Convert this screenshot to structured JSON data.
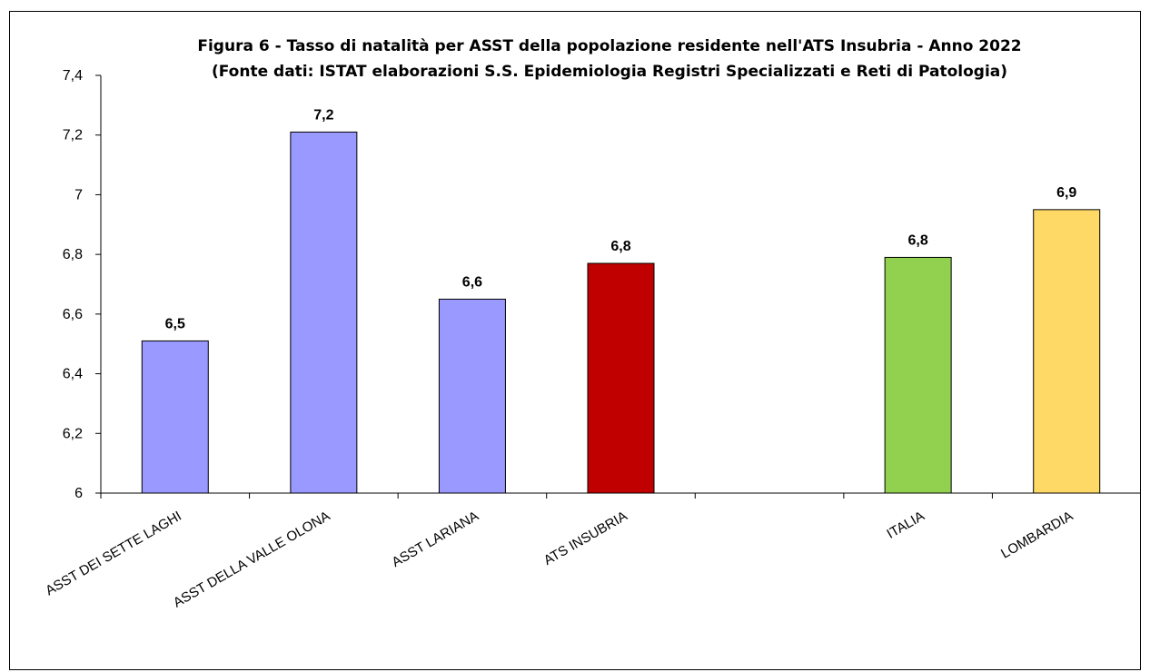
{
  "chart_data": {
    "type": "bar",
    "title": "Figura 6 - Tasso di natalità per ASST della popolazione residente nell'ATS Insubria - Anno 2022",
    "subtitle": "(Fonte dati: ISTAT elaborazioni  S.S. Epidemiologia Registri Specializzati e Reti di Patologia)",
    "xlabel": "",
    "ylabel": "",
    "ylim": [
      6,
      7.4
    ],
    "yticks": [
      "6",
      "6,2",
      "6,4",
      "6,6",
      "6,8",
      "7",
      "7,2",
      "7,4"
    ],
    "grid": false,
    "legend": "none",
    "categories": [
      "ASST DEI SETTE LAGHI",
      "ASST DELLA VALLE OLONA",
      "ASST LARIANA",
      "ATS INSUBRIA",
      "",
      "ITALIA",
      "LOMBARDIA"
    ],
    "values": [
      6.51,
      7.21,
      6.65,
      6.77,
      null,
      6.79,
      6.95
    ],
    "data_labels": [
      "6,5",
      "7,2",
      "6,6",
      "6,8",
      "",
      "6,8",
      "6,9"
    ],
    "colors": [
      "#9999ff",
      "#9999ff",
      "#9999ff",
      "#c00000",
      "",
      "#92d050",
      "#ffd966"
    ]
  }
}
